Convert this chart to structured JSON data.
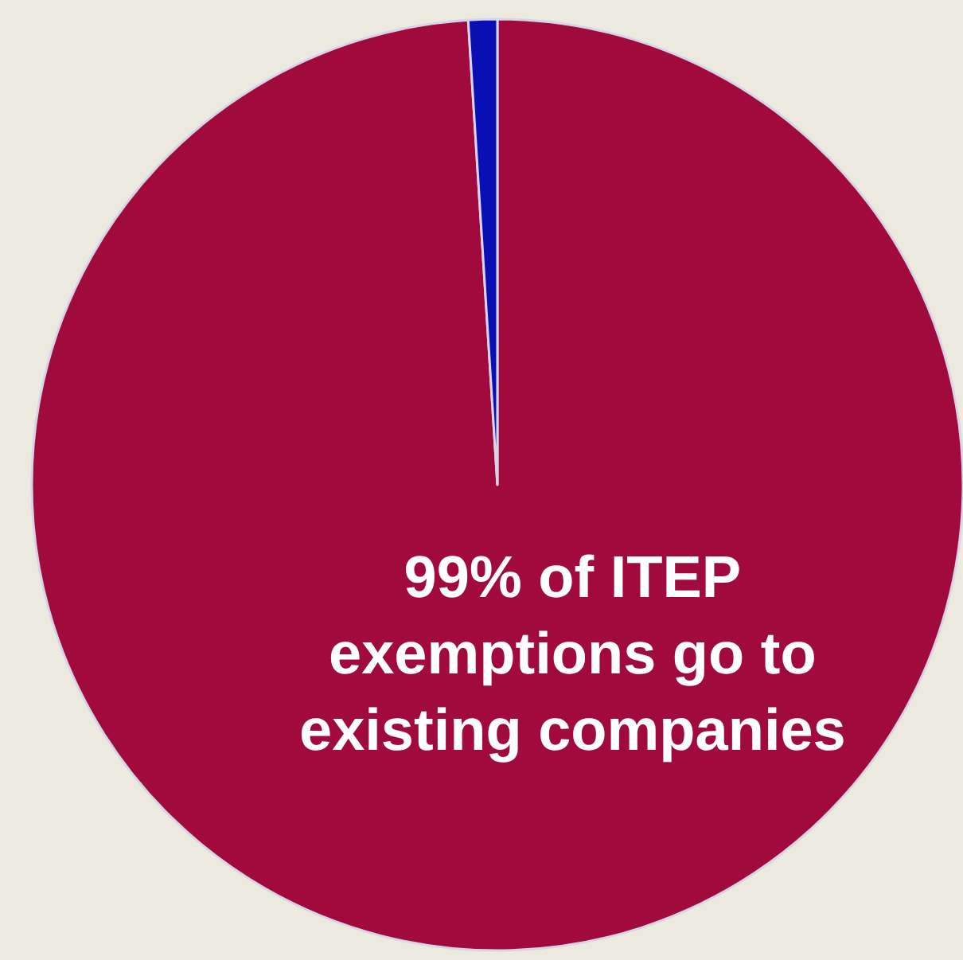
{
  "chart_data": {
    "type": "pie",
    "categories": [
      null,
      null
    ],
    "values": [
      99,
      1
    ],
    "colors": [
      "#a00a3c",
      "#0a0fb4"
    ],
    "annotations": [
      "99% of ITEP\nexemptions go to\nexisting companies"
    ],
    "legend": false
  }
}
